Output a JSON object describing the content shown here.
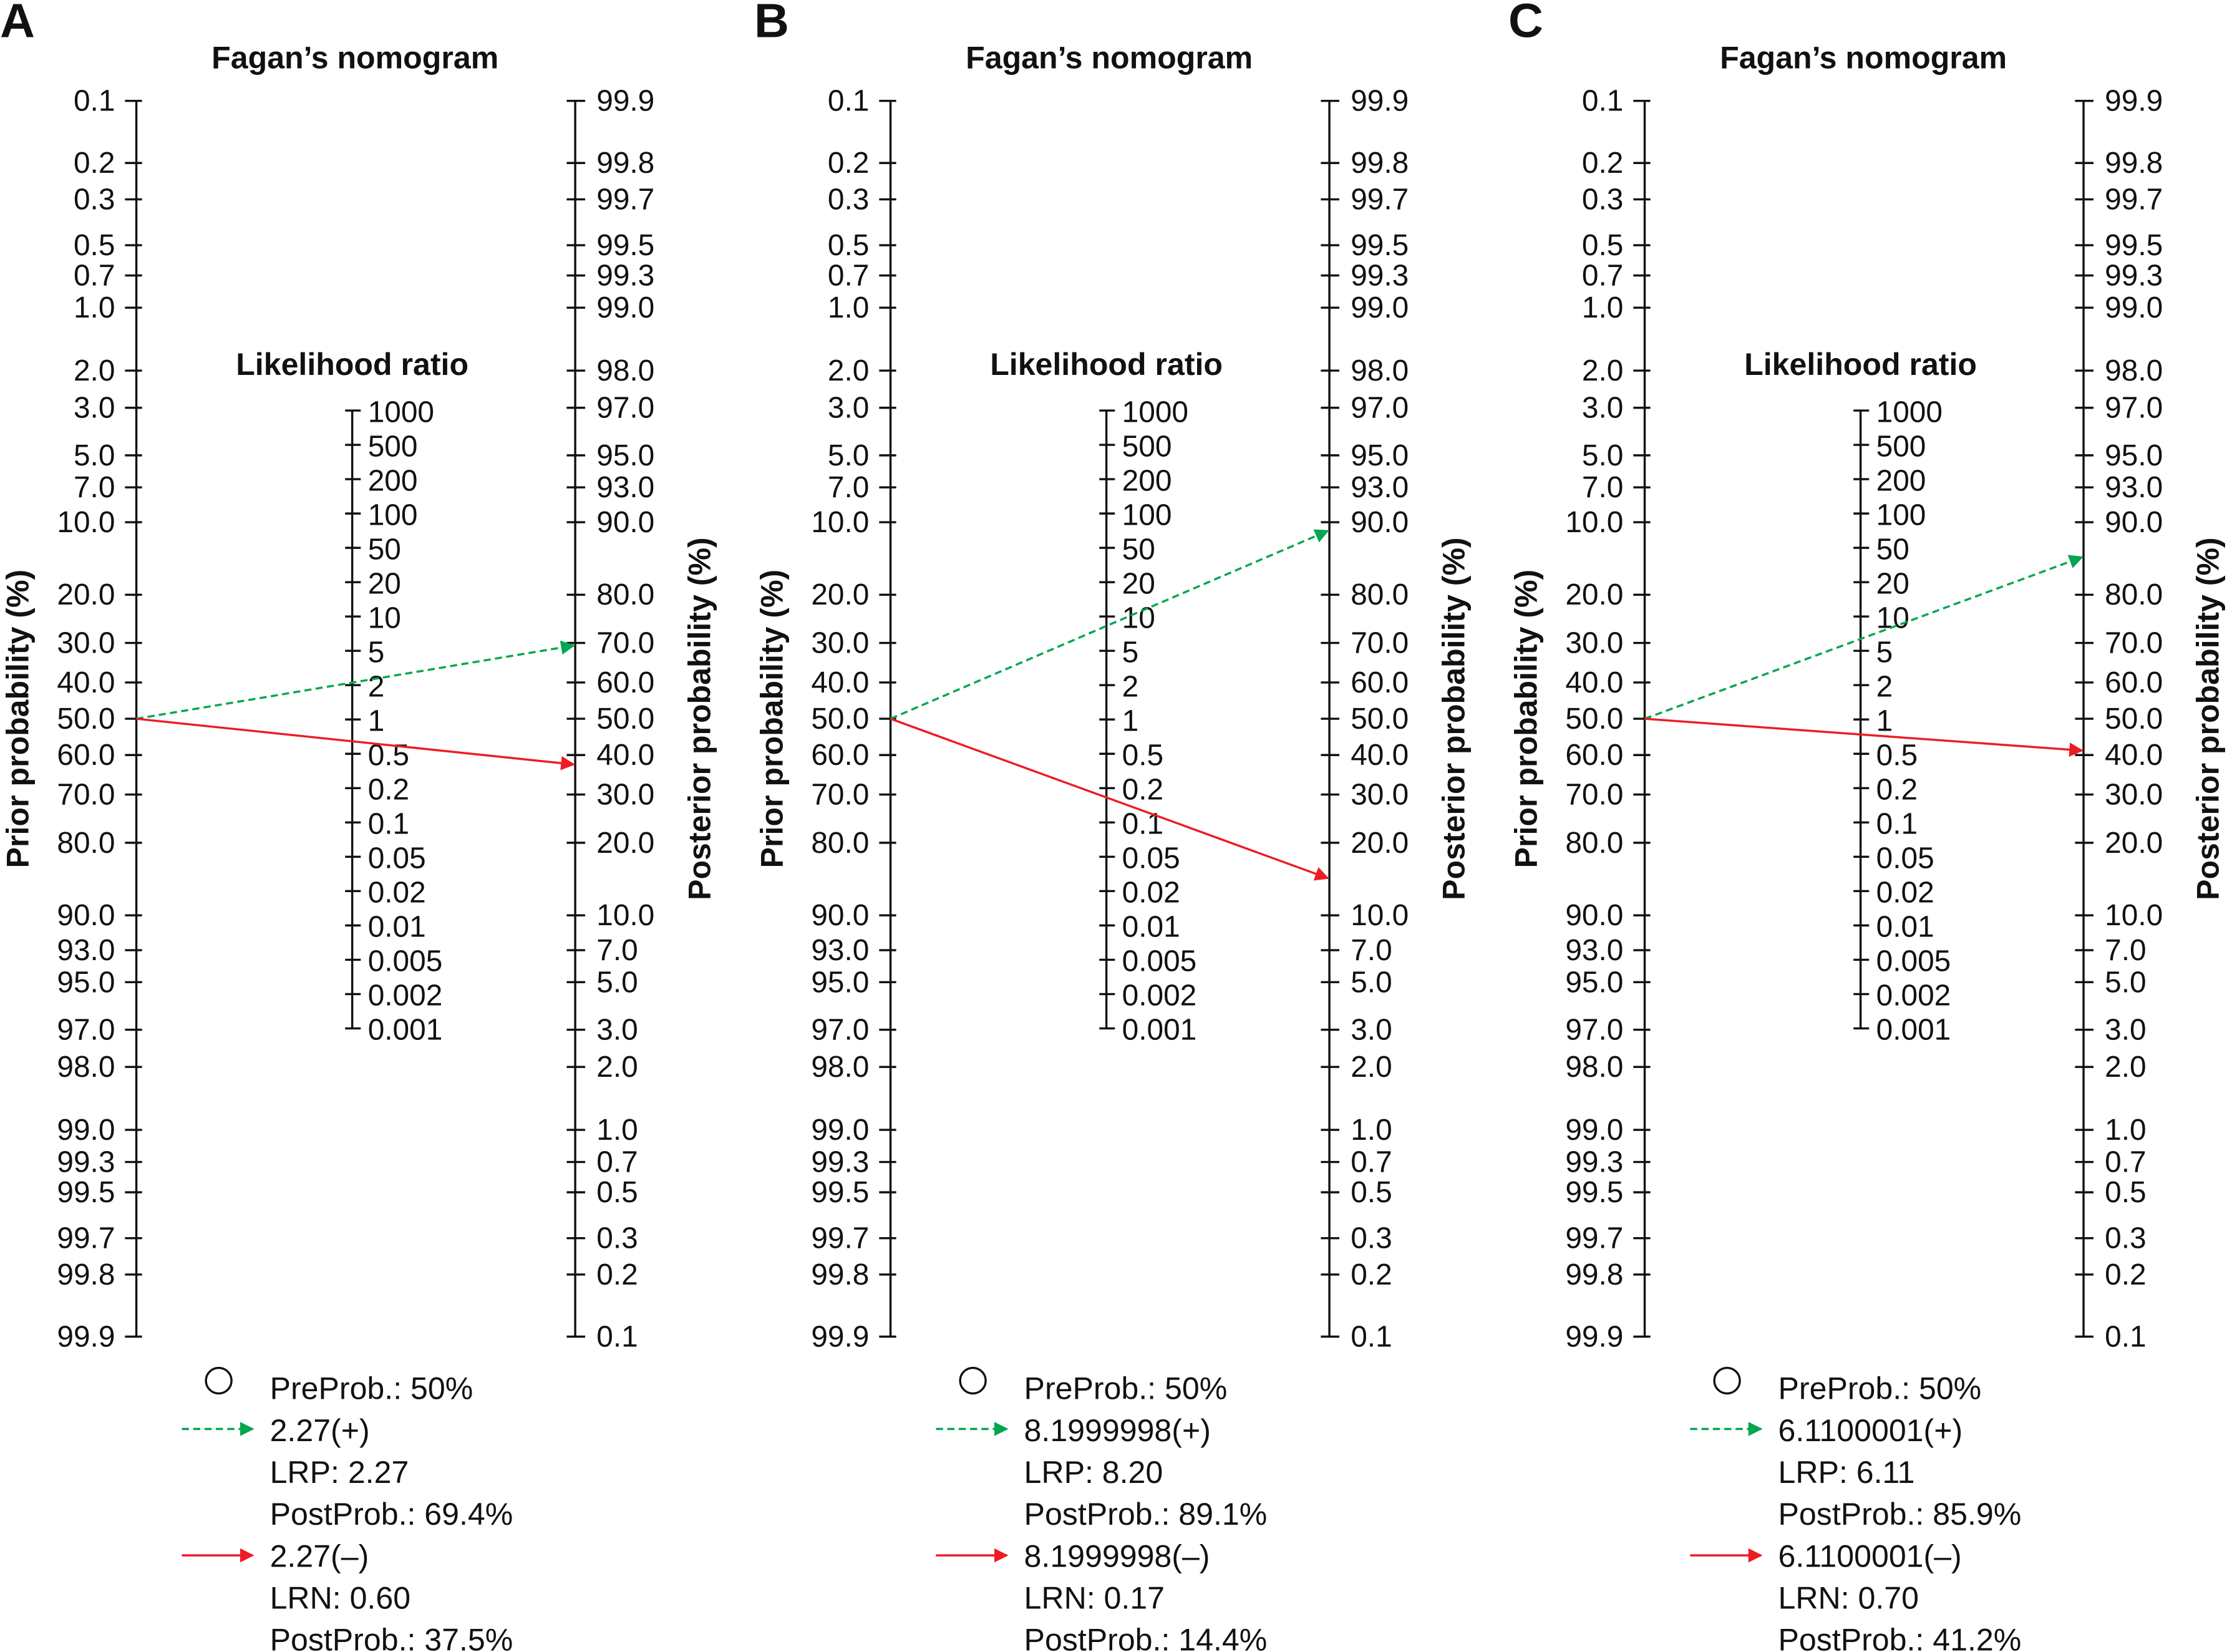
{
  "chart_data": {
    "type": "nomogram",
    "shared_axes": {
      "prior_label": "Prior probability (%)",
      "posterior_label": "Posterior probability (%)",
      "lr_title": "Likelihood ratio",
      "prior_ticks": [
        "0.1",
        "0.2",
        "0.3",
        "0.5",
        "0.7",
        "1.0",
        "2.0",
        "3.0",
        "5.0",
        "7.0",
        "10.0",
        "20.0",
        "30.0",
        "40.0",
        "50.0",
        "60.0",
        "70.0",
        "80.0",
        "90.0",
        "93.0",
        "95.0",
        "97.0",
        "98.0",
        "99.0",
        "99.3",
        "99.5",
        "99.7",
        "99.8",
        "99.9"
      ],
      "posterior_ticks": [
        "99.9",
        "99.8",
        "99.7",
        "99.5",
        "99.3",
        "99.0",
        "98.0",
        "97.0",
        "95.0",
        "93.0",
        "90.0",
        "80.0",
        "70.0",
        "60.0",
        "50.0",
        "40.0",
        "30.0",
        "20.0",
        "10.0",
        "7.0",
        "5.0",
        "3.0",
        "2.0",
        "1.0",
        "0.7",
        "0.5",
        "0.3",
        "0.2",
        "0.1"
      ],
      "lr_ticks": [
        "1000",
        "500",
        "200",
        "100",
        "50",
        "20",
        "10",
        "5",
        "2",
        "1",
        "0.5",
        "0.2",
        "0.1",
        "0.05",
        "0.02",
        "0.01",
        "0.005",
        "0.002",
        "0.001"
      ],
      "prior_range": [
        0.1,
        99.9
      ],
      "posterior_range": [
        0.1,
        99.9
      ],
      "lr_range": [
        0.001,
        1000
      ],
      "scale": "logit"
    },
    "colors": {
      "positive": "#00a651",
      "negative": "#ed1c24",
      "axis": "#111111"
    },
    "panels": [
      {
        "panel_label": "A",
        "title": "Fagan’s nomogram",
        "pre_prob": 50,
        "lr_pos": 2.27,
        "lr_neg": 0.6,
        "post_pos": 69.4,
        "post_neg": 37.5,
        "legend": [
          "PreProb.: 50%",
          "2.27(+)",
          "LRP: 2.27",
          "PostProb.: 69.4%",
          "2.27(–)",
          "LRN: 0.60",
          "PostProb.: 37.5%"
        ]
      },
      {
        "panel_label": "B",
        "title": "Fagan’s nomogram",
        "pre_prob": 50,
        "lr_pos": 8.2,
        "lr_neg": 0.17,
        "post_pos": 89.1,
        "post_neg": 14.4,
        "legend": [
          "PreProb.: 50%",
          "8.1999998(+)",
          "LRP: 8.20",
          "PostProb.: 89.1%",
          "8.1999998(–)",
          "LRN: 0.17",
          "PostProb.: 14.4%"
        ]
      },
      {
        "panel_label": "C",
        "title": "Fagan’s nomogram",
        "pre_prob": 50,
        "lr_pos": 6.11,
        "lr_neg": 0.7,
        "post_pos": 85.9,
        "post_neg": 41.2,
        "legend": [
          "PreProb.: 50%",
          "6.1100001(+)",
          "LRP: 6.11",
          "PostProb.: 85.9%",
          "6.1100001(–)",
          "LRN: 0.70",
          "PostProb.: 41.2%"
        ]
      }
    ]
  }
}
